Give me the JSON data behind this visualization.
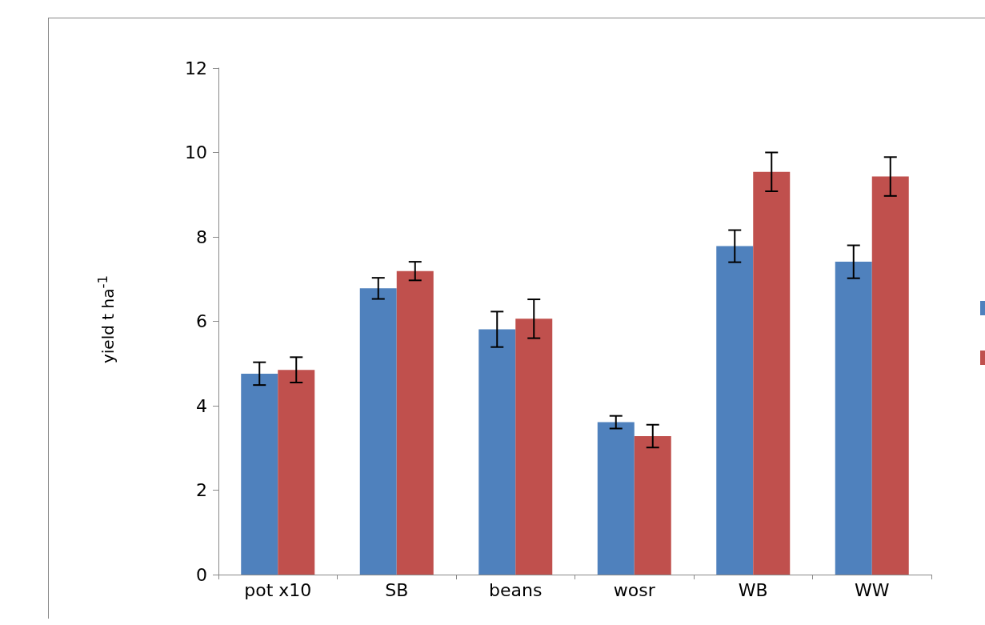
{
  "chart_data": {
    "type": "bar",
    "ylabel": "yield t ha$^{-1}$",
    "categories": [
      "pot x10",
      "SB",
      "beans",
      "wosr",
      "WB",
      "WW"
    ],
    "series": [
      {
        "color": "#4f81bd",
        "values": [
          4.76,
          6.78,
          5.81,
          3.61,
          7.78,
          7.41
        ],
        "errors": [
          0.27,
          0.25,
          0.42,
          0.15,
          0.38,
          0.39
        ]
      },
      {
        "color": "#c0504d",
        "values": [
          4.85,
          7.19,
          6.06,
          3.28,
          9.54,
          9.43
        ],
        "errors": [
          0.3,
          0.22,
          0.46,
          0.27,
          0.46,
          0.46
        ]
      }
    ],
    "ylim": [
      0,
      12
    ],
    "yticks": [
      0,
      2,
      4,
      6,
      8,
      10,
      12
    ],
    "grid": false
  }
}
